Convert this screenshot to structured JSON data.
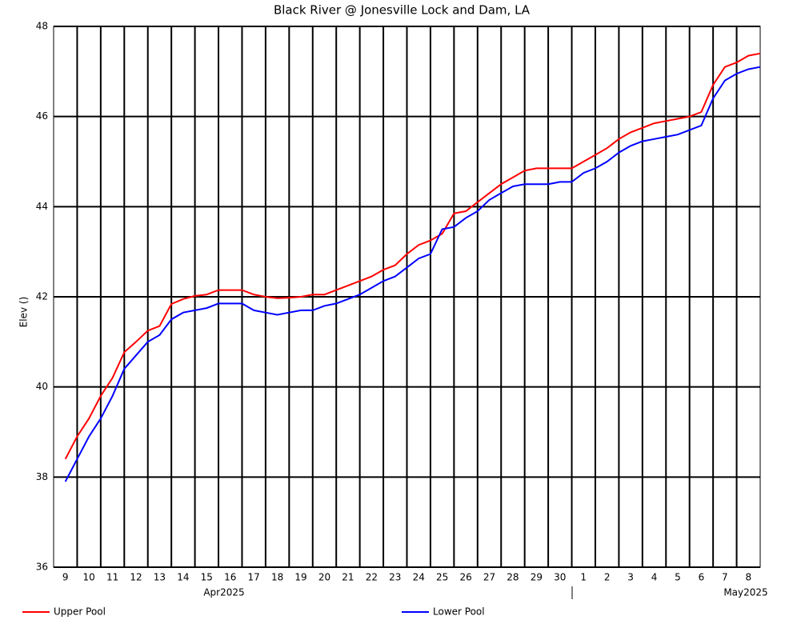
{
  "chart_data": {
    "type": "line",
    "title": "Black River @ Jonesville Lock and Dam, LA",
    "y_label": "Elev ()",
    "month_labels": [
      "Apr2025",
      "May2025"
    ],
    "categories": [
      "9",
      null,
      "10",
      null,
      "11",
      null,
      "12",
      null,
      "13",
      null,
      "14",
      null,
      "15",
      null,
      "16",
      null,
      "17",
      null,
      "18",
      null,
      "19",
      null,
      "20",
      null,
      "21",
      null,
      "22",
      null,
      "23",
      null,
      "24",
      null,
      "25",
      null,
      "26",
      null,
      "27",
      null,
      "28",
      null,
      "29",
      null,
      "30",
      null,
      "1",
      null,
      "2",
      null,
      "3",
      null,
      "4",
      null,
      "5",
      null,
      "6",
      null,
      "7",
      null,
      "8",
      null
    ],
    "series": [
      {
        "name": "Upper Pool",
        "color": "#ff0000",
        "values": [
          38.4,
          38.9,
          39.3,
          39.8,
          40.2,
          40.77,
          41.0,
          41.25,
          41.35,
          41.84,
          41.95,
          42.02,
          42.05,
          42.15,
          42.15,
          42.15,
          42.05,
          42.0,
          41.97,
          41.98,
          42.0,
          42.05,
          42.05,
          42.15,
          42.25,
          42.35,
          42.45,
          42.6,
          42.7,
          42.95,
          43.15,
          43.25,
          43.4,
          43.85,
          43.9,
          44.1,
          44.3,
          44.5,
          44.65,
          44.8,
          44.85,
          44.85,
          44.85,
          44.85,
          45.0,
          45.15,
          45.3,
          45.5,
          45.65,
          45.75,
          45.85,
          45.9,
          45.95,
          46.0,
          46.1,
          46.7,
          47.1,
          47.2,
          47.35,
          47.4
        ]
      },
      {
        "name": "Lower Pool",
        "color": "#0000ff",
        "values": [
          37.9,
          38.4,
          38.9,
          39.3,
          39.8,
          40.4,
          40.7,
          41.0,
          41.15,
          41.5,
          41.65,
          41.7,
          41.75,
          41.85,
          41.85,
          41.85,
          41.7,
          41.65,
          41.6,
          41.65,
          41.7,
          41.7,
          41.8,
          41.85,
          41.95,
          42.05,
          42.2,
          42.35,
          42.45,
          42.65,
          42.85,
          42.95,
          43.5,
          43.55,
          43.75,
          43.9,
          44.15,
          44.3,
          44.45,
          44.5,
          44.5,
          44.5,
          44.55,
          44.55,
          44.75,
          44.85,
          45.0,
          45.2,
          45.35,
          45.45,
          45.5,
          45.55,
          45.6,
          45.7,
          45.8,
          46.4,
          46.8,
          46.95,
          47.05,
          47.1
        ]
      }
    ],
    "ylim": [
      36,
      48
    ],
    "yticks": [
      36,
      38,
      40,
      42,
      44,
      46,
      48
    ],
    "grid": true
  }
}
